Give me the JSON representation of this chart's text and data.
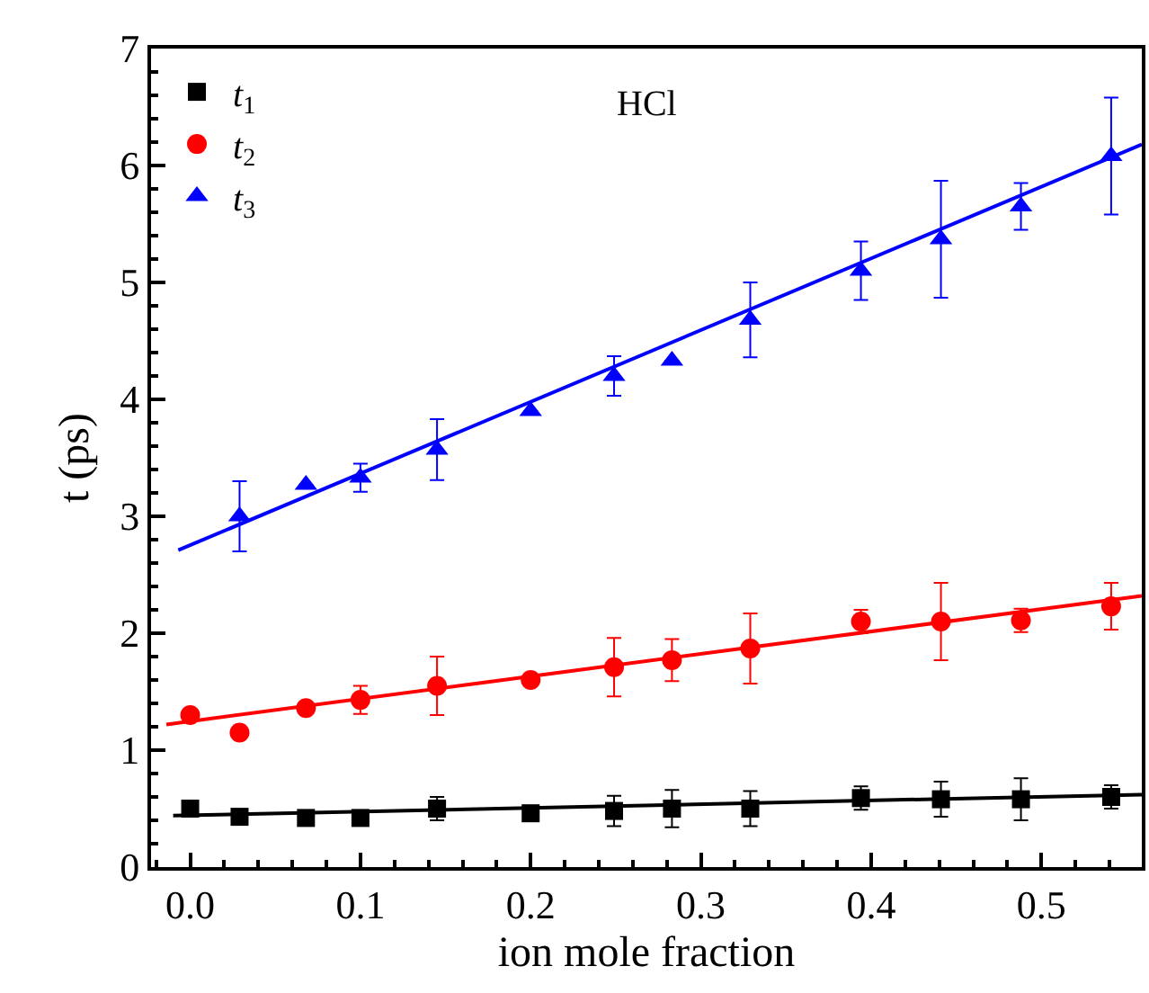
{
  "chart_data": {
    "type": "scatter",
    "xlabel": "ion mole fraction",
    "ylabel": "t (ps)",
    "annotations": [
      "HCl"
    ],
    "xlim": [
      -0.023,
      0.559
    ],
    "xticks": [
      {
        "value": 0,
        "label": "0.0"
      },
      0.1,
      0.2,
      0.3,
      0.4,
      0.5
    ],
    "ylim": [
      0,
      7
    ],
    "yticks": [
      0,
      1,
      2,
      3,
      4,
      5,
      6,
      7
    ],
    "legend": "top left",
    "x": [
      0.0,
      0.029,
      0.068,
      0.1,
      0.145,
      0.2,
      0.249,
      0.283,
      0.329,
      0.394,
      0.441,
      0.488,
      0.541
    ],
    "series": [
      {
        "name": "t$_{1}$",
        "color": "#000000",
        "marker": "square",
        "values": [
          0.5,
          0.43,
          0.42,
          0.42,
          0.5,
          0.46,
          0.48,
          0.5,
          0.5,
          0.59,
          0.58,
          0.58,
          0.6
        ],
        "errors": [
          null,
          null,
          null,
          null,
          0.1,
          null,
          0.13,
          0.16,
          0.15,
          0.1,
          0.15,
          0.18,
          0.1
        ]
      },
      {
        "name": "t$_{2}$",
        "color": "#ff0000",
        "marker": "circle",
        "values": [
          1.3,
          1.15,
          1.36,
          1.43,
          1.55,
          1.6,
          1.71,
          1.77,
          1.87,
          2.1,
          2.1,
          2.11,
          2.23
        ],
        "errors": [
          null,
          null,
          null,
          0.12,
          0.25,
          null,
          0.25,
          0.18,
          0.3,
          0.1,
          0.33,
          0.1,
          0.2
        ]
      },
      {
        "name": "t$_{3}$",
        "color": "#0000ff",
        "marker": "triangle",
        "x": [
          0.029,
          0.068,
          0.1,
          0.145,
          0.2,
          0.249,
          0.283,
          0.329,
          0.394,
          0.441,
          0.488,
          0.541
        ],
        "values": [
          3.0,
          3.27,
          3.33,
          3.57,
          3.9,
          4.2,
          4.33,
          4.68,
          5.1,
          5.37,
          5.65,
          6.08
        ],
        "errors": [
          0.3,
          null,
          0.12,
          0.26,
          null,
          0.17,
          null,
          0.32,
          0.25,
          0.5,
          0.2,
          0.5
        ]
      },
      {
        "type": "line",
        "color": "#000000",
        "marker": "none",
        "line_style": "solid",
        "x": [
          -0.01,
          0.559
        ],
        "values": [
          0.44,
          0.62
        ]
      },
      {
        "type": "line",
        "color": "#ff0000",
        "marker": "none",
        "line_style": "solid",
        "x": [
          -0.014,
          0.559
        ],
        "values": [
          1.22,
          2.32
        ]
      },
      {
        "type": "line",
        "color": "#0000ff",
        "marker": "none",
        "line_style": "solid",
        "x": [
          -0.007,
          0.559
        ],
        "values": [
          2.71,
          6.18
        ]
      }
    ]
  }
}
